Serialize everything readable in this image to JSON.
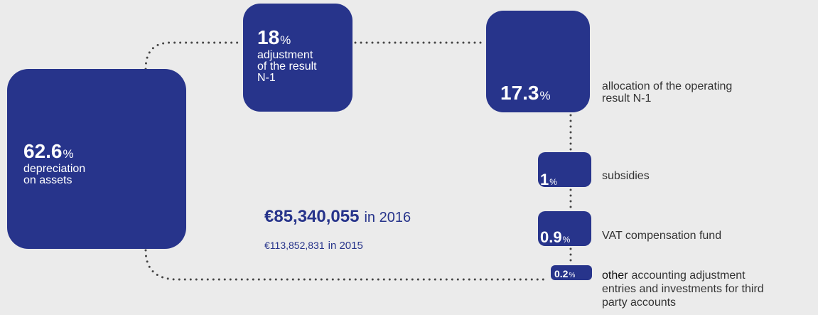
{
  "nodes": [
    {
      "value": 62.6,
      "unit": "%",
      "label_lines": [
        "depreciation",
        "on assets"
      ]
    },
    {
      "value": 18,
      "unit": "%",
      "label_lines": [
        "adjustment",
        "of the result",
        "N-1"
      ]
    },
    {
      "value": 17.3,
      "unit": "%",
      "label_lines": [
        "allocation of the operating",
        "result N-1"
      ]
    },
    {
      "value": 1,
      "unit": "%",
      "label_lines": [
        "subsidies"
      ]
    },
    {
      "value": 0.9,
      "unit": "%",
      "label_lines": [
        "VAT compensation fund"
      ]
    },
    {
      "value": 0.2,
      "unit": "%",
      "label_emphasis": "other",
      "label_lines": [
        "accounting adjustment",
        "entries and investments for third",
        "party accounts"
      ]
    }
  ],
  "totals": {
    "current": {
      "amount": "€85,340,055",
      "label": "in 2016"
    },
    "previous": {
      "amount": "€113,852,831",
      "label": "in 2015"
    }
  }
}
